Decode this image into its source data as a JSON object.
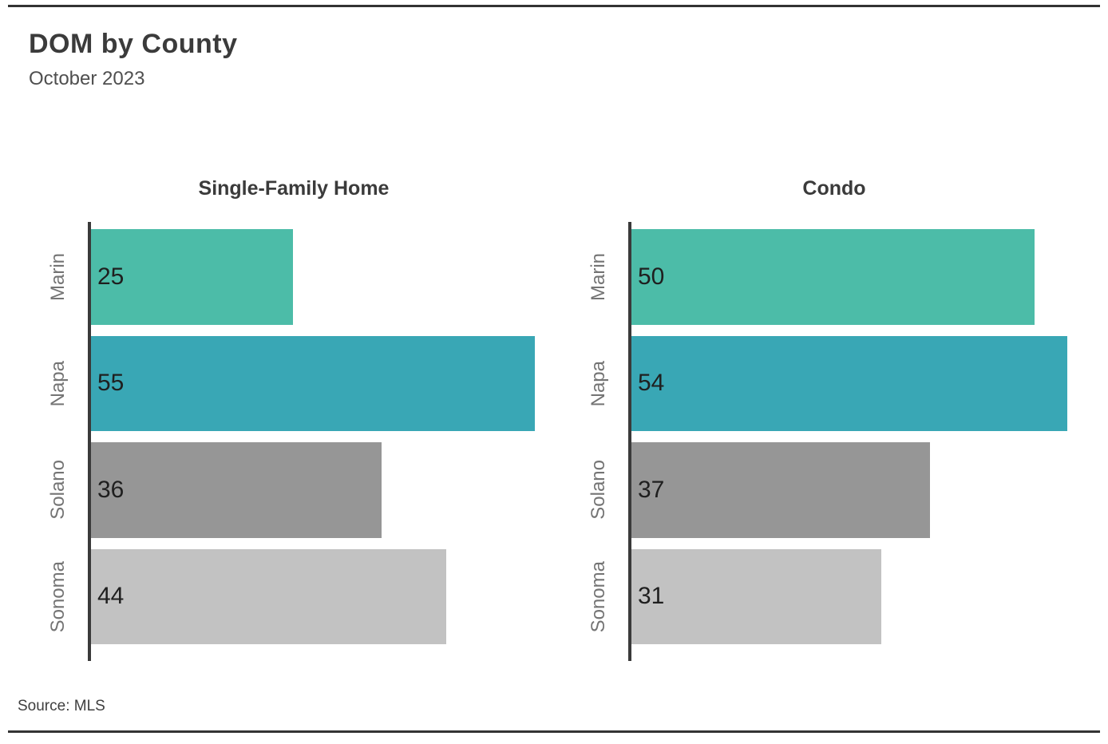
{
  "page": {
    "title": "DOM by County",
    "subtitle": "October 2023",
    "source": "Source: MLS"
  },
  "chart_data": {
    "type": "bar",
    "orientation": "horizontal",
    "title": "DOM by County",
    "subtitle": "October 2023",
    "source": "Source: MLS",
    "categories": [
      "Marin",
      "Napa",
      "Solano",
      "Sonoma"
    ],
    "series": [
      {
        "name": "Single-Family Home",
        "values": [
          25,
          55,
          36,
          44
        ]
      },
      {
        "name": "Condo",
        "values": [
          50,
          54,
          37,
          31
        ]
      }
    ],
    "xlim": [
      0,
      58
    ],
    "value_labels": true,
    "grid": false,
    "legend_position": "none",
    "bar_colors": [
      "#4CBCA8",
      "#39A7B5",
      "#969696",
      "#C2C2C2"
    ],
    "axis_color": "#3a3a3a",
    "label_color": "#747474",
    "value_label_color": "#1f1f1f"
  }
}
